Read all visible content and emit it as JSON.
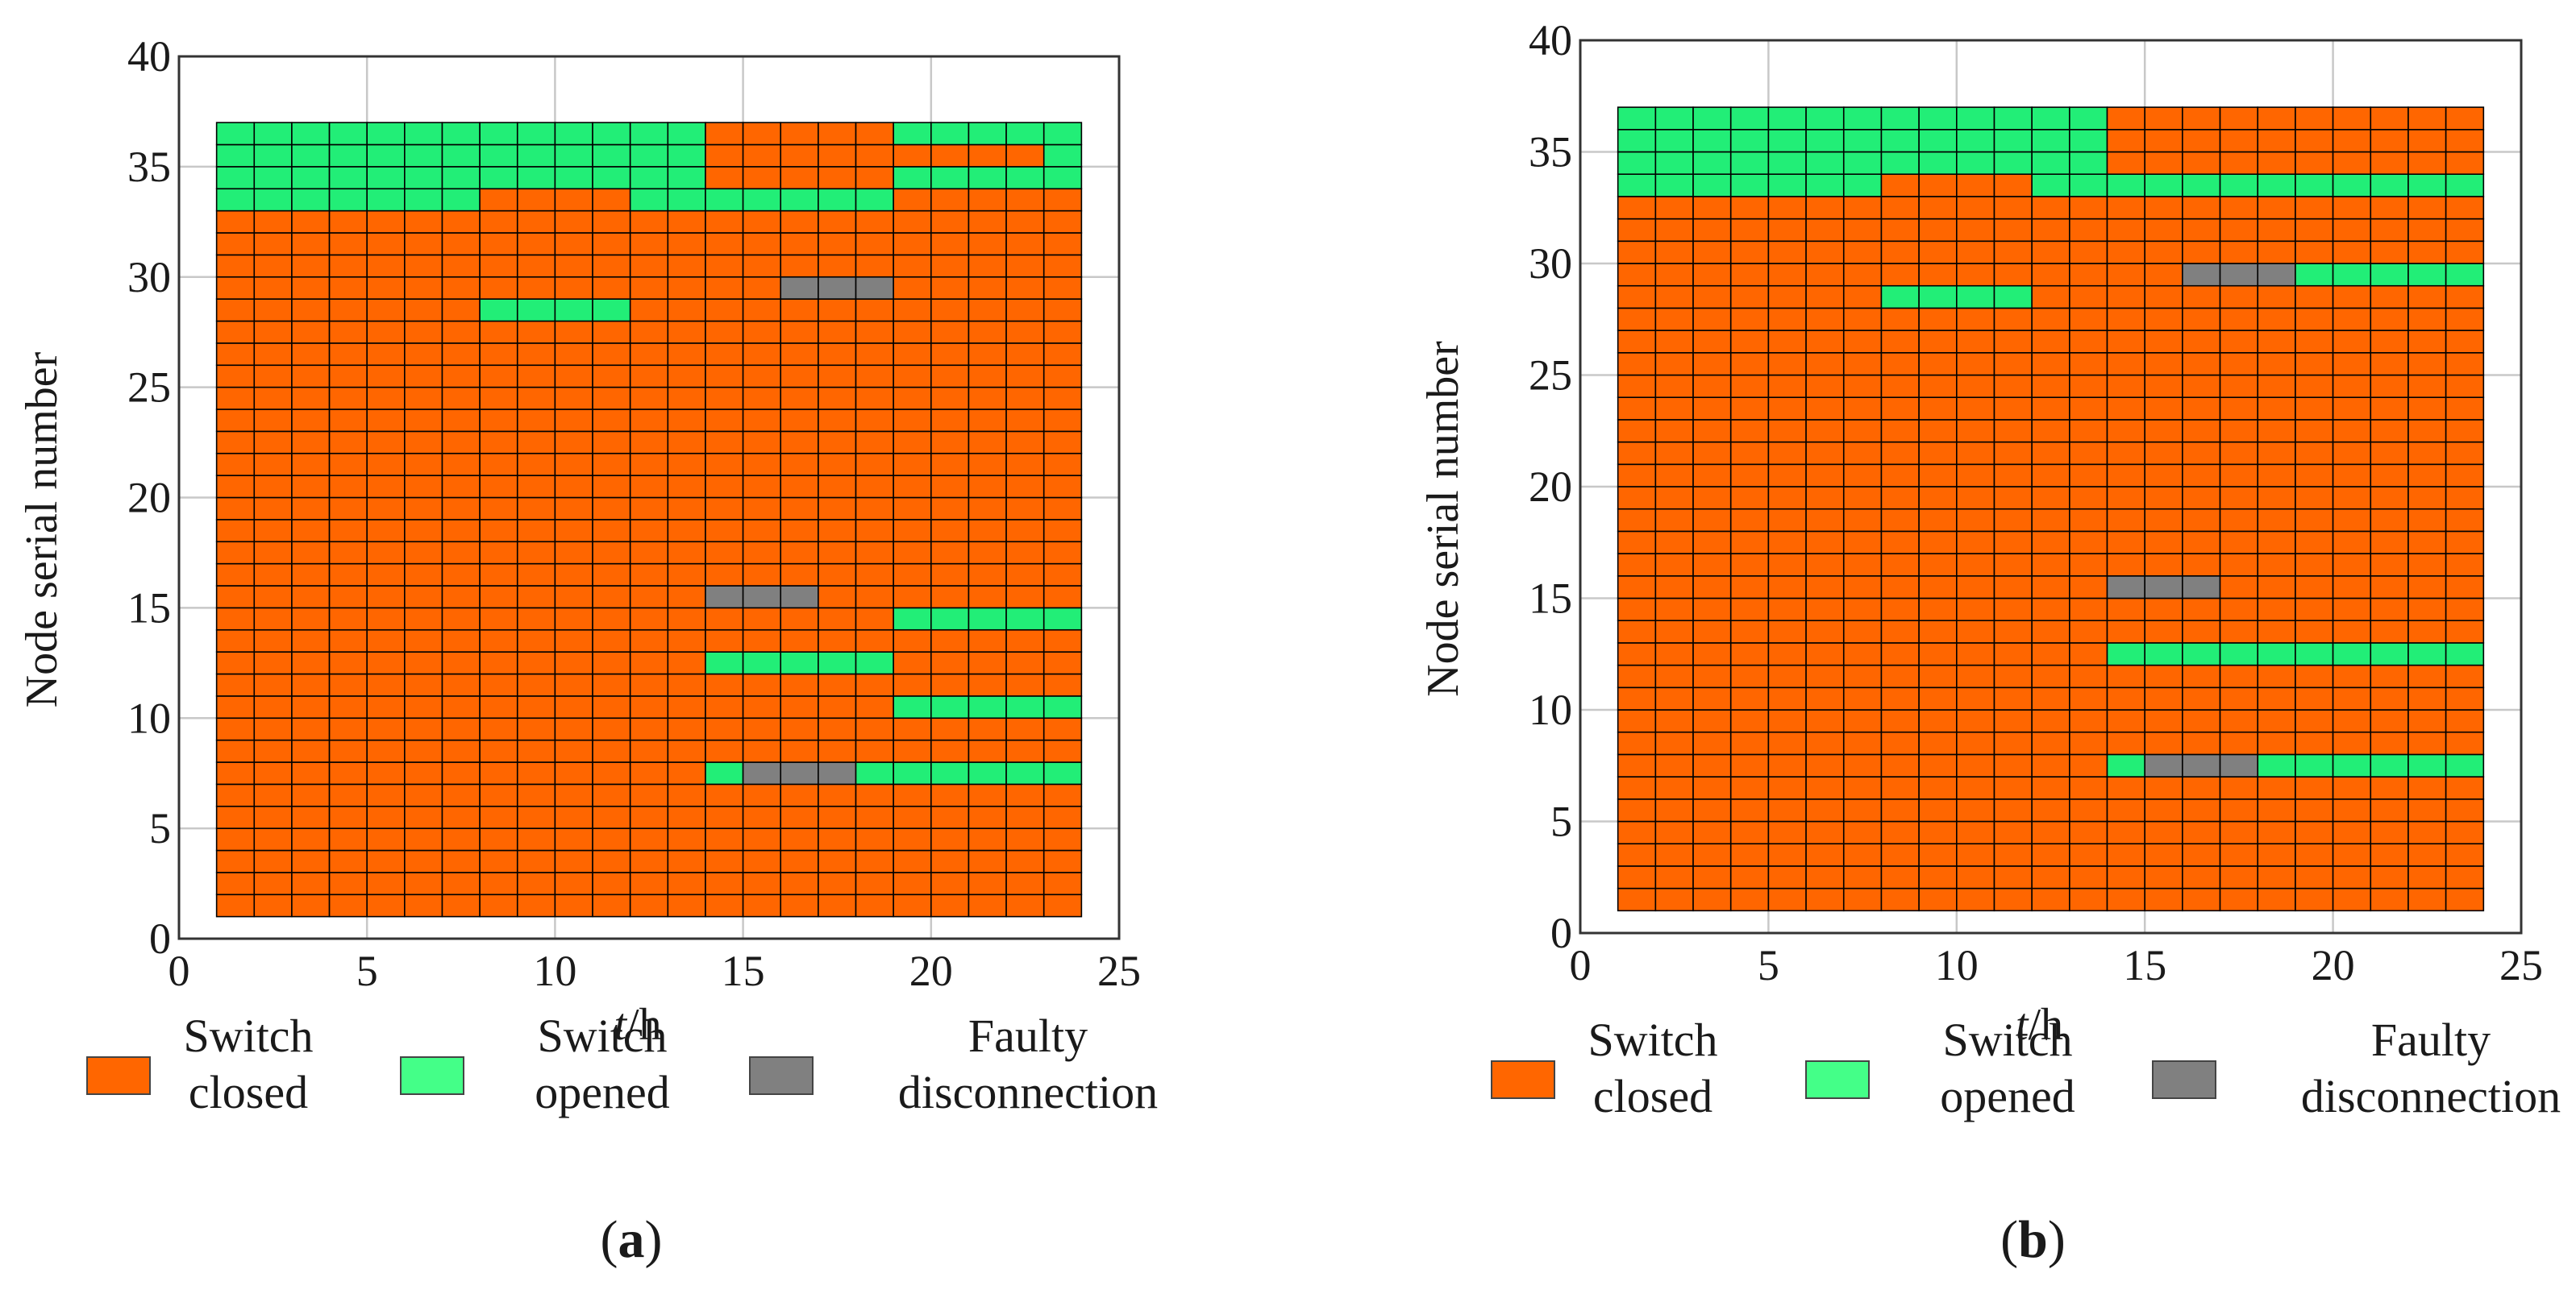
{
  "colors": {
    "closed": "#FF6600",
    "opened": "#22EE77",
    "fault": "#808080",
    "legend_opened": "#44FF88",
    "cell_border": "#000000",
    "grid": "#c8c8c8"
  },
  "legend_labels": {
    "closed": [
      "Switch",
      "closed"
    ],
    "opened": [
      "Switch",
      "opened"
    ],
    "fault": [
      "Faulty",
      "disconnection"
    ]
  },
  "chart_data": [
    {
      "type": "heatmap",
      "panel_label": "a",
      "xlabel_italic": "t",
      "xlabel_unit": "/h",
      "ylabel": "Node serial number",
      "xlim": [
        0,
        25
      ],
      "ylim": [
        0,
        40
      ],
      "xticks": [
        0,
        5,
        10,
        15,
        20,
        25
      ],
      "yticks": [
        0,
        5,
        10,
        15,
        20,
        25,
        30,
        35,
        40
      ],
      "hours": [
        1,
        24
      ],
      "nodes": [
        1,
        37
      ],
      "default_state": "closed",
      "opened": [
        {
          "node_range": [
            33,
            37
          ],
          "hours": [
            1,
            8
          ]
        },
        {
          "node_range": [
            34,
            37
          ],
          "hours": [
            8,
            12
          ]
        },
        {
          "node_range": [
            33,
            37
          ],
          "hours": [
            12,
            14
          ]
        },
        {
          "node_range": [
            33,
            34
          ],
          "hours": [
            14,
            19
          ]
        },
        {
          "node_range": [
            36,
            37
          ],
          "hours": [
            19,
            24
          ]
        },
        {
          "node_range": [
            34,
            35
          ],
          "hours": [
            19,
            23
          ]
        },
        {
          "node_range": [
            34,
            36
          ],
          "hours": [
            23,
            24
          ]
        },
        {
          "node_range": [
            28,
            29
          ],
          "hours": [
            8,
            12
          ]
        },
        {
          "node_range": [
            14,
            15
          ],
          "hours": [
            19,
            24
          ]
        },
        {
          "node_range": [
            12,
            13
          ],
          "hours": [
            14,
            19
          ]
        },
        {
          "node_range": [
            10,
            11
          ],
          "hours": [
            19,
            24
          ]
        },
        {
          "node_range": [
            7,
            8
          ],
          "hours": [
            14,
            15
          ]
        },
        {
          "node_range": [
            7,
            8
          ],
          "hours": [
            18,
            24
          ]
        }
      ],
      "faults": [
        {
          "node_range": [
            29,
            30
          ],
          "hours": [
            16,
            19
          ]
        },
        {
          "node_range": [
            15,
            16
          ],
          "hours": [
            14,
            17
          ]
        },
        {
          "node_range": [
            7,
            8
          ],
          "hours": [
            15,
            18
          ]
        }
      ]
    },
    {
      "type": "heatmap",
      "panel_label": "b",
      "xlabel_italic": "t",
      "xlabel_unit": "/h",
      "ylabel": "Node serial number",
      "xlim": [
        0,
        25
      ],
      "ylim": [
        0,
        40
      ],
      "xticks": [
        0,
        5,
        10,
        15,
        20,
        25
      ],
      "yticks": [
        0,
        5,
        10,
        15,
        20,
        25,
        30,
        35,
        40
      ],
      "hours": [
        1,
        24
      ],
      "nodes": [
        1,
        37
      ],
      "default_state": "closed",
      "opened": [
        {
          "node_range": [
            33,
            37
          ],
          "hours": [
            1,
            8
          ]
        },
        {
          "node_range": [
            34,
            37
          ],
          "hours": [
            8,
            12
          ]
        },
        {
          "node_range": [
            33,
            37
          ],
          "hours": [
            12,
            14
          ]
        },
        {
          "node_range": [
            33,
            34
          ],
          "hours": [
            14,
            24
          ]
        },
        {
          "node_range": [
            28,
            29
          ],
          "hours": [
            8,
            12
          ]
        },
        {
          "node_range": [
            29,
            30
          ],
          "hours": [
            19,
            24
          ]
        },
        {
          "node_range": [
            12,
            13
          ],
          "hours": [
            14,
            24
          ]
        },
        {
          "node_range": [
            7,
            8
          ],
          "hours": [
            14,
            15
          ]
        },
        {
          "node_range": [
            7,
            8
          ],
          "hours": [
            18,
            24
          ]
        }
      ],
      "faults": [
        {
          "node_range": [
            29,
            30
          ],
          "hours": [
            16,
            19
          ]
        },
        {
          "node_range": [
            15,
            16
          ],
          "hours": [
            14,
            17
          ]
        },
        {
          "node_range": [
            7,
            8
          ],
          "hours": [
            15,
            18
          ]
        }
      ]
    }
  ]
}
